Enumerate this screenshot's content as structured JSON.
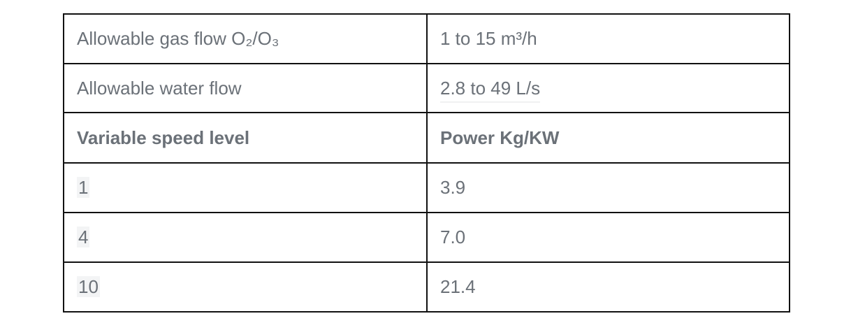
{
  "table": {
    "rows": [
      {
        "label": "Allowable gas flow O₂/O₃",
        "value": "1 to 15 m³/h"
      },
      {
        "label": "Allowable water flow",
        "value": "2.8 to 49 L/s"
      },
      {
        "label": "Variable speed level",
        "value": "Power Kg/KW"
      },
      {
        "label": "1",
        "value": "3.9"
      },
      {
        "label": "4",
        "value": "7.0"
      },
      {
        "label": "10",
        "value": "21.4"
      }
    ]
  }
}
